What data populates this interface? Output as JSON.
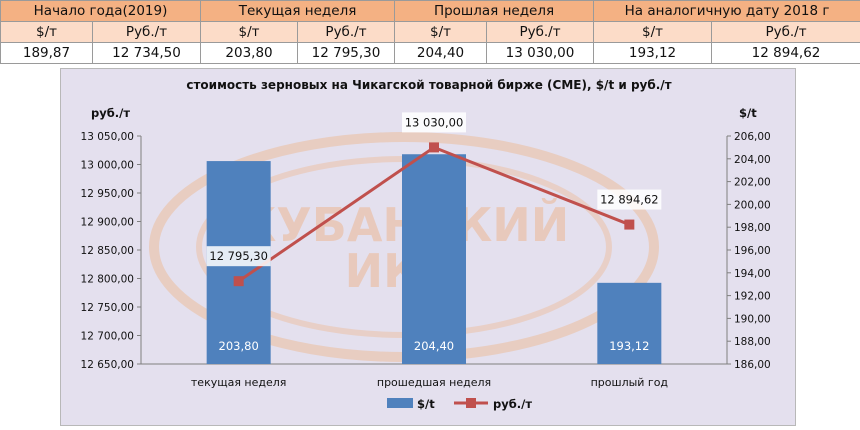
{
  "table": {
    "headers": [
      "Начало года(2019)",
      "Текущая неделя",
      "Прошлая неделя",
      "На аналогичную дату 2018 г"
    ],
    "units": [
      "$/т",
      "Руб./т",
      "$/т",
      "Руб./т",
      "$/т",
      "Руб./т",
      "$/т",
      "Руб./т"
    ],
    "values": [
      "189,87",
      "12 734,50",
      "203,80",
      "12 795,30",
      "204,40",
      "13 030,00",
      "193,12",
      "12 894,62"
    ]
  },
  "chart_data": {
    "type": "bar",
    "title": "стоимость зерновых на Чикагской товарной бирже (CME), $/t и руб./т",
    "left_axis_unit": "руб./т",
    "right_axis_unit": "$/t",
    "categories": [
      "текущая неделя",
      "прошедшая неделя",
      "прошлый год"
    ],
    "series": [
      {
        "name": "$/t",
        "kind": "bar",
        "axis": "right",
        "values": [
          203.8,
          204.4,
          193.12
        ],
        "labels": [
          "203,80",
          "204,40",
          "193,12"
        ],
        "color": "#4f81bd"
      },
      {
        "name": "руб./т",
        "kind": "line",
        "axis": "left",
        "values": [
          12795.3,
          13030.0,
          12894.62
        ],
        "labels": [
          "12 795,30",
          "13 030,00",
          "12 894,62"
        ],
        "color": "#c0504d"
      }
    ],
    "left_ylim": [
      12650,
      13050
    ],
    "left_ticks": [
      "13 050,00",
      "13 000,00",
      "12 950,00",
      "12 900,00",
      "12 850,00",
      "12 800,00",
      "12 750,00",
      "12 700,00",
      "12 650,00"
    ],
    "right_ylim": [
      186,
      206
    ],
    "right_ticks": [
      "206,00",
      "204,00",
      "202,00",
      "200,00",
      "198,00",
      "196,00",
      "194,00",
      "192,00",
      "190,00",
      "188,00",
      "186,00"
    ],
    "watermark": [
      "КУБАНСКИЙ",
      "ИКЦ"
    ],
    "legend_position": "bottom",
    "grid": false
  }
}
